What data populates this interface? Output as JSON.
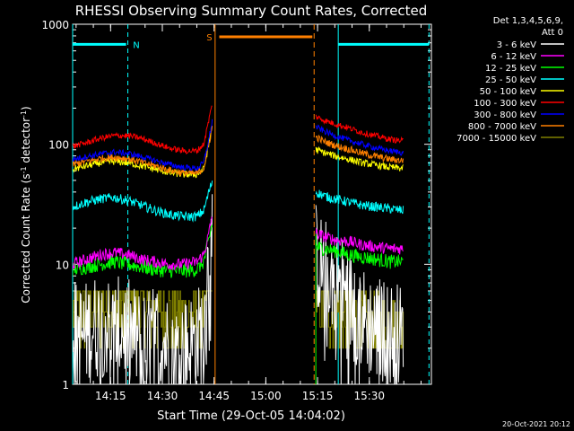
{
  "chart_data": {
    "type": "line",
    "title": "RHESSI Observing Summary Count Rates, Corrected",
    "xlabel": "Start Time (29-Oct-05 14:04:02)",
    "ylabel_main": "Corrected Count Rate (s",
    "ylabel_exp1": "-1",
    "ylabel_mid": " detector",
    "ylabel_exp2": "-1",
    "ylabel_end": ")",
    "yscale": "log",
    "xlim": [
      0,
      104
    ],
    "ylim": [
      1,
      1000
    ],
    "x_ticks": [
      {
        "x": 11,
        "label": "14:15"
      },
      {
        "x": 26,
        "label": "14:30"
      },
      {
        "x": 41,
        "label": "14:45"
      },
      {
        "x": 56,
        "label": "15:00"
      },
      {
        "x": 71,
        "label": "15:15"
      },
      {
        "x": 86,
        "label": "15:30"
      }
    ],
    "y_ticks": [
      {
        "y": 1,
        "label": "1"
      },
      {
        "y": 10,
        "label": "10"
      },
      {
        "y": 100,
        "label": "100"
      },
      {
        "y": 1000,
        "label": "1000"
      }
    ],
    "legend_header": [
      "Det 1,3,4,5,6,9,",
      "Att 0"
    ],
    "series": [
      {
        "name": "3 - 6 keV",
        "color": "#ffffff",
        "style": "noisy-low",
        "pre": [
          [
            0,
            3
          ],
          [
            3,
            2.5
          ],
          [
            6,
            3
          ],
          [
            9,
            3.2
          ],
          [
            12,
            2.7
          ],
          [
            15,
            3
          ],
          [
            18,
            2.4
          ],
          [
            21,
            2.1
          ],
          [
            24,
            2.6
          ],
          [
            27,
            2.2
          ],
          [
            30,
            1.8
          ],
          [
            33,
            2
          ],
          [
            36,
            2.3
          ],
          [
            38,
            3
          ],
          [
            39.5,
            12
          ],
          [
            40.5,
            22
          ]
        ],
        "post": [
          [
            70.5,
            12
          ],
          [
            72,
            9.5
          ],
          [
            75,
            8
          ],
          [
            78,
            6.5
          ],
          [
            81,
            4.5
          ],
          [
            84,
            3.5
          ],
          [
            87,
            3
          ],
          [
            90,
            2.8
          ],
          [
            93,
            2.6
          ],
          [
            96,
            2.5
          ]
        ],
        "noise": 0.45
      },
      {
        "name": "6 - 12 keV",
        "color": "#ff00ff",
        "style": "line",
        "pre": [
          [
            0,
            10
          ],
          [
            4,
            11
          ],
          [
            8,
            12
          ],
          [
            12,
            12.5
          ],
          [
            16,
            12
          ],
          [
            20,
            11
          ],
          [
            24,
            10.5
          ],
          [
            28,
            10
          ],
          [
            32,
            10
          ],
          [
            36,
            10.5
          ],
          [
            38,
            12
          ],
          [
            39.5,
            18
          ],
          [
            40.5,
            26
          ]
        ],
        "post": [
          [
            70.5,
            18
          ],
          [
            73,
            17
          ],
          [
            76,
            16
          ],
          [
            80,
            15.5
          ],
          [
            84,
            14.5
          ],
          [
            88,
            14
          ],
          [
            92,
            13.5
          ],
          [
            96,
            13.5
          ]
        ],
        "noise": 0.05
      },
      {
        "name": "12 - 25 keV",
        "color": "#00ff00",
        "style": "line",
        "pre": [
          [
            0,
            9
          ],
          [
            4,
            9.5
          ],
          [
            8,
            10
          ],
          [
            12,
            10.5
          ],
          [
            16,
            10
          ],
          [
            20,
            9.5
          ],
          [
            24,
            9
          ],
          [
            28,
            8.8
          ],
          [
            32,
            8.8
          ],
          [
            36,
            9
          ],
          [
            38,
            10.5
          ],
          [
            39.5,
            16
          ],
          [
            40.5,
            22
          ]
        ],
        "post": [
          [
            70.5,
            14
          ],
          [
            73,
            13.5
          ],
          [
            76,
            13
          ],
          [
            80,
            12
          ],
          [
            84,
            11.5
          ],
          [
            88,
            11
          ],
          [
            92,
            10.5
          ],
          [
            96,
            10.5
          ]
        ],
        "noise": 0.06
      },
      {
        "name": "25 - 50 keV",
        "color": "#00ffff",
        "style": "line",
        "pre": [
          [
            0,
            30
          ],
          [
            4,
            33
          ],
          [
            8,
            35
          ],
          [
            12,
            36
          ],
          [
            16,
            34
          ],
          [
            20,
            31
          ],
          [
            24,
            28
          ],
          [
            28,
            26
          ],
          [
            32,
            25
          ],
          [
            36,
            25
          ],
          [
            38,
            28
          ],
          [
            39.5,
            40
          ],
          [
            40.5,
            50
          ]
        ],
        "post": [
          [
            70.5,
            40
          ],
          [
            73,
            37
          ],
          [
            76,
            35
          ],
          [
            80,
            33
          ],
          [
            84,
            31
          ],
          [
            88,
            30
          ],
          [
            92,
            29
          ],
          [
            96,
            28
          ]
        ],
        "noise": 0.04
      },
      {
        "name": "50 - 100 keV",
        "color": "#ffff00",
        "style": "line",
        "pre": [
          [
            0,
            62
          ],
          [
            4,
            66
          ],
          [
            8,
            70
          ],
          [
            12,
            72
          ],
          [
            16,
            70
          ],
          [
            20,
            66
          ],
          [
            24,
            62
          ],
          [
            28,
            58
          ],
          [
            32,
            56
          ],
          [
            36,
            56
          ],
          [
            38,
            62
          ],
          [
            39.5,
            100
          ],
          [
            40.5,
            150
          ]
        ],
        "post": [
          [
            70.5,
            90
          ],
          [
            73,
            85
          ],
          [
            76,
            80
          ],
          [
            80,
            75
          ],
          [
            84,
            70
          ],
          [
            88,
            67
          ],
          [
            92,
            64
          ],
          [
            96,
            63
          ]
        ],
        "noise": 0.03
      },
      {
        "name": "100 - 300 keV",
        "color": "#ff0000",
        "style": "line",
        "pre": [
          [
            0,
            96
          ],
          [
            4,
            103
          ],
          [
            8,
            112
          ],
          [
            12,
            118
          ],
          [
            16,
            118
          ],
          [
            20,
            112
          ],
          [
            24,
            102
          ],
          [
            28,
            93
          ],
          [
            32,
            88
          ],
          [
            36,
            88
          ],
          [
            38,
            100
          ],
          [
            39.5,
            160
          ],
          [
            40.5,
            220
          ]
        ],
        "post": [
          [
            70.5,
            170
          ],
          [
            73,
            158
          ],
          [
            76,
            148
          ],
          [
            80,
            137
          ],
          [
            84,
            125
          ],
          [
            88,
            117
          ],
          [
            92,
            110
          ],
          [
            96,
            106
          ]
        ],
        "noise": 0.025
      },
      {
        "name": "300 - 800 keV",
        "color": "#0000ff",
        "style": "line",
        "pre": [
          [
            0,
            75
          ],
          [
            4,
            79
          ],
          [
            8,
            83
          ],
          [
            12,
            86
          ],
          [
            16,
            84
          ],
          [
            20,
            79
          ],
          [
            24,
            73
          ],
          [
            28,
            68
          ],
          [
            32,
            64
          ],
          [
            36,
            63
          ],
          [
            38,
            70
          ],
          [
            39.5,
            110
          ],
          [
            40.5,
            160
          ]
        ],
        "post": [
          [
            70.5,
            140
          ],
          [
            73,
            128
          ],
          [
            76,
            118
          ],
          [
            80,
            108
          ],
          [
            84,
            100
          ],
          [
            88,
            93
          ],
          [
            92,
            88
          ],
          [
            96,
            85
          ]
        ],
        "noise": 0.025
      },
      {
        "name": "800 - 7000 keV",
        "color": "#ff8000",
        "style": "line",
        "pre": [
          [
            0,
            68
          ],
          [
            4,
            72
          ],
          [
            8,
            76
          ],
          [
            12,
            78
          ],
          [
            16,
            76
          ],
          [
            20,
            71
          ],
          [
            24,
            66
          ],
          [
            28,
            61
          ],
          [
            32,
            58
          ],
          [
            36,
            57
          ],
          [
            38,
            63
          ],
          [
            39.5,
            100
          ],
          [
            40.5,
            140
          ]
        ],
        "post": [
          [
            70.5,
            115
          ],
          [
            73,
            105
          ],
          [
            76,
            98
          ],
          [
            80,
            91
          ],
          [
            84,
            84
          ],
          [
            88,
            79
          ],
          [
            92,
            75
          ],
          [
            96,
            73
          ]
        ],
        "noise": 0.03
      },
      {
        "name": "7000 - 15000 keV",
        "color": "#808000",
        "style": "steps",
        "pre": [
          [
            0,
            3.8
          ],
          [
            4,
            4.2
          ],
          [
            8,
            4.6
          ],
          [
            12,
            4.8
          ],
          [
            16,
            4.5
          ],
          [
            20,
            4.2
          ],
          [
            24,
            3.9
          ],
          [
            28,
            3.6
          ],
          [
            32,
            3.5
          ],
          [
            36,
            3.6
          ],
          [
            38,
            4
          ],
          [
            39.5,
            10
          ],
          [
            40.5,
            15
          ]
        ],
        "post": [
          [
            70.5,
            6
          ],
          [
            73,
            4.5
          ],
          [
            76,
            3.8
          ],
          [
            80,
            3.5
          ],
          [
            84,
            3
          ],
          [
            88,
            2.8
          ],
          [
            92,
            2.7
          ],
          [
            96,
            2.7
          ]
        ],
        "noise": 0.35
      }
    ],
    "annotations": [
      {
        "type": "marker",
        "label": "N",
        "color": "#00ffff"
      },
      {
        "type": "marker",
        "label": "S",
        "color": "#ff8000"
      }
    ]
  },
  "timestamp": "20-Oct-2021 20:12"
}
